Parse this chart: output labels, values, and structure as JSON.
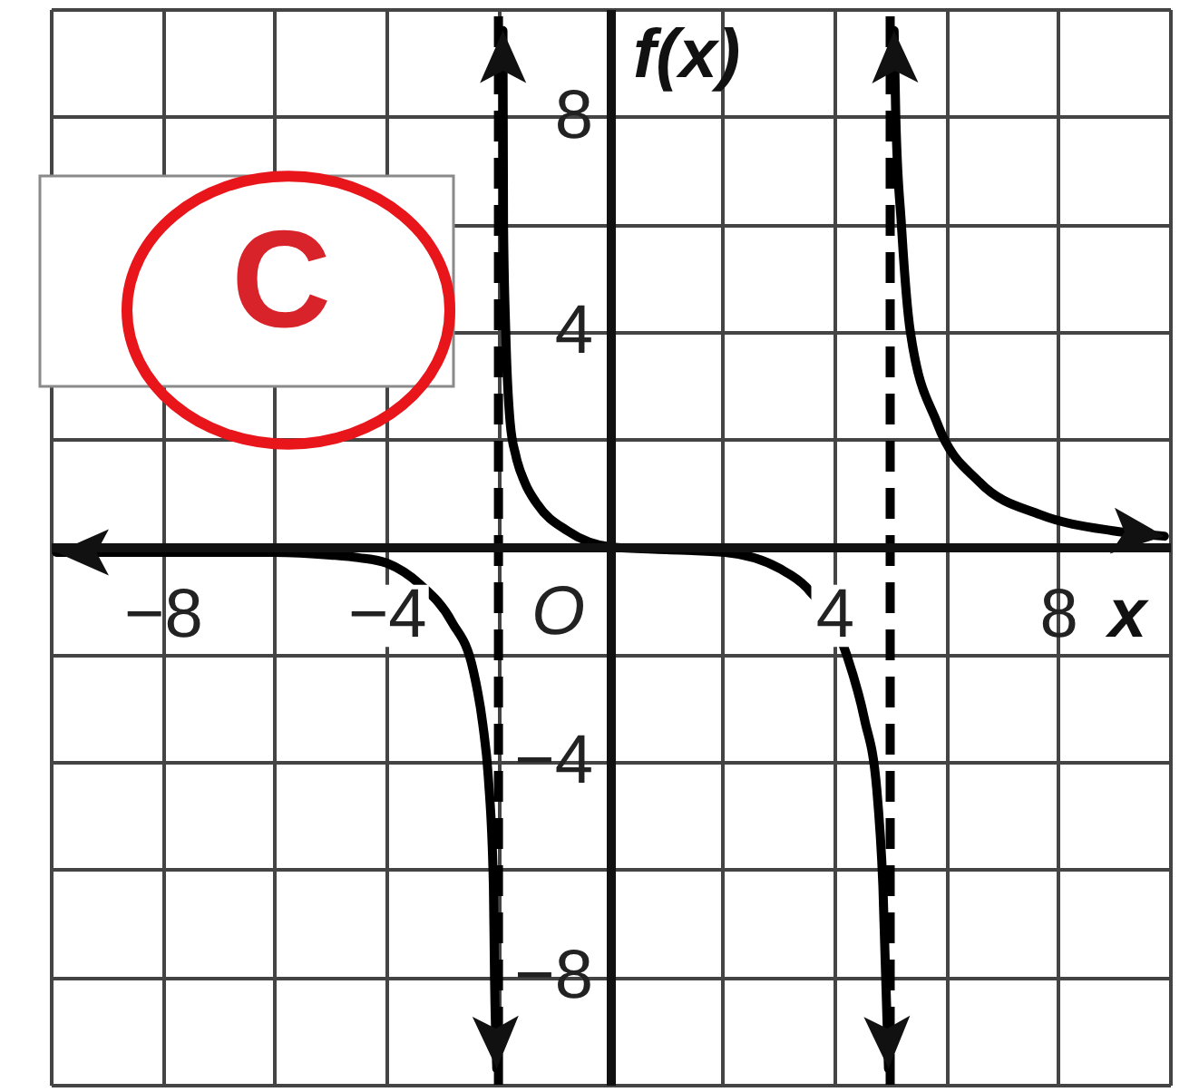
{
  "chart_data": {
    "type": "line",
    "xlabel": "x",
    "ylabel": "f(x)",
    "annotations": [
      "C",
      {
        "text": "O",
        "x": 0,
        "y": 0
      }
    ],
    "series": [
      {
        "color": "#000000",
        "x": [
          -9.9,
          -8,
          -6,
          -5,
          -4.5,
          -4,
          -3.4,
          -2.83,
          -2.45,
          -2.28,
          -2.18,
          -2.09,
          -2.07,
          -2.03
        ],
        "values": [
          -0.1,
          -0.1,
          -0.1,
          -0.15,
          -0.2,
          -0.3,
          -0.7,
          -1.4,
          -2.3,
          -3.3,
          -4.3,
          -6.3,
          -8,
          -9.7
        ]
      },
      {
        "color": "#000000",
        "x": [
          -1.92,
          -1.91,
          -1.87,
          -1.79,
          -1.69,
          -1.53,
          -1.31,
          -0.77,
          0,
          1,
          2.05,
          3.02,
          3.5,
          4.22,
          4.54,
          4.76,
          4.87,
          4.97
        ],
        "values": [
          9.6,
          6,
          4,
          2.3,
          1.7,
          1.2,
          0.8,
          0.3,
          0,
          -0.05,
          -0.1,
          -0.4,
          -0.75,
          -2,
          -3.2,
          -4.5,
          -6.3,
          -9.7
        ]
      },
      {
        "color": "#000000",
        "x": [
          5.07,
          5.1,
          5.2,
          5.36,
          5.84,
          6.6,
          7.68,
          8.98,
          9.9
        ],
        "values": [
          9.6,
          8,
          6,
          4,
          2.3,
          1.2,
          0.6,
          0.3,
          0.2
        ]
      }
    ],
    "xlim": [
      -10,
      10
    ],
    "ylim": [
      -10,
      10
    ],
    "xticks": [
      {
        "value": -10,
        "label": null
      },
      -8,
      {
        "value": -6,
        "label": null
      },
      -4,
      {
        "value": -2,
        "label": null
      },
      {
        "value": 0,
        "label": null
      },
      {
        "value": 2,
        "label": null
      },
      4,
      {
        "value": 6,
        "label": null
      },
      8,
      {
        "value": 10,
        "label": null
      }
    ],
    "yticks": [
      {
        "value": -10,
        "label": null
      },
      -8,
      {
        "value": -6,
        "label": null
      },
      -4,
      {
        "value": -2,
        "label": null
      },
      {
        "value": 0,
        "label": null
      },
      {
        "value": 2,
        "label": null
      },
      4,
      {
        "value": 6,
        "label": null
      },
      8,
      {
        "value": 10,
        "label": null
      }
    ],
    "grid": true,
    "ref_lines": [
      {
        "axis": "x",
        "value": -2,
        "color": "#000000",
        "line_style": "dashed"
      },
      {
        "axis": "x",
        "value": 5,
        "color": "#000000",
        "line_style": "dashed"
      }
    ]
  }
}
